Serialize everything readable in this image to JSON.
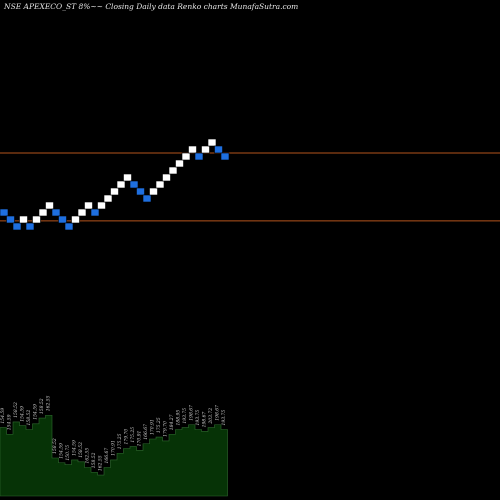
{
  "header": {
    "title": "NSE APEXECO_ST 8%~~ Closing Daily data  Renko  charts MunafaSutra.com"
  },
  "chart_data": {
    "type": "renko",
    "bricks": [
      {
        "level": 12,
        "dir": "down"
      },
      {
        "level": 11,
        "dir": "down"
      },
      {
        "level": 10,
        "dir": "down"
      },
      {
        "level": 11,
        "dir": "up"
      },
      {
        "level": 10,
        "dir": "down"
      },
      {
        "level": 11,
        "dir": "up"
      },
      {
        "level": 12,
        "dir": "up"
      },
      {
        "level": 13,
        "dir": "up"
      },
      {
        "level": 12,
        "dir": "down"
      },
      {
        "level": 11,
        "dir": "down"
      },
      {
        "level": 10,
        "dir": "down"
      },
      {
        "level": 11,
        "dir": "up"
      },
      {
        "level": 12,
        "dir": "up"
      },
      {
        "level": 13,
        "dir": "up"
      },
      {
        "level": 12,
        "dir": "down"
      },
      {
        "level": 13,
        "dir": "up"
      },
      {
        "level": 14,
        "dir": "up"
      },
      {
        "level": 15,
        "dir": "up"
      },
      {
        "level": 16,
        "dir": "up"
      },
      {
        "level": 17,
        "dir": "up"
      },
      {
        "level": 16,
        "dir": "down"
      },
      {
        "level": 15,
        "dir": "down"
      },
      {
        "level": 14,
        "dir": "down"
      },
      {
        "level": 15,
        "dir": "up"
      },
      {
        "level": 16,
        "dir": "up"
      },
      {
        "level": 17,
        "dir": "up"
      },
      {
        "level": 18,
        "dir": "up"
      },
      {
        "level": 19,
        "dir": "up"
      },
      {
        "level": 20,
        "dir": "up"
      },
      {
        "level": 21,
        "dir": "up"
      },
      {
        "level": 20,
        "dir": "down"
      },
      {
        "level": 21,
        "dir": "up"
      },
      {
        "level": 22,
        "dir": "up"
      },
      {
        "level": 21,
        "dir": "down"
      },
      {
        "level": 20,
        "dir": "down"
      }
    ],
    "reference_levels": [
      21,
      11.3
    ],
    "volume": [
      0.72,
      0.65,
      0.78,
      0.74,
      0.7,
      0.76,
      0.82,
      0.85,
      0.4,
      0.35,
      0.33,
      0.38,
      0.36,
      0.3,
      0.25,
      0.22,
      0.3,
      0.38,
      0.45,
      0.5,
      0.52,
      0.48,
      0.55,
      0.6,
      0.62,
      0.58,
      0.65,
      0.7,
      0.72,
      0.75,
      0.7,
      0.68,
      0.72,
      0.75,
      0.7
    ],
    "volume_labels": [
      "154.59",
      "154.59",
      "158.52",
      "154.59",
      "158.52",
      "154.59",
      "158.52",
      "162.55",
      "158.52",
      "154.59",
      "150.75",
      "154.59",
      "158.52",
      "162.55",
      "158.52",
      "162.55",
      "166.67",
      "170.91",
      "175.25",
      "179.70",
      "175.25",
      "170.91",
      "166.67",
      "170.91",
      "175.25",
      "179.70",
      "184.27",
      "188.95",
      "193.75",
      "198.67",
      "193.75",
      "198.67",
      "203.72",
      "198.67",
      "193.75"
    ],
    "colors": {
      "background": "#000000",
      "up_brick": "#ffffff",
      "down_brick": "#1e6fe0",
      "reference_line": "#b5541c",
      "volume_fill": "#063306",
      "volume_edge": "#2f6a2f"
    }
  }
}
